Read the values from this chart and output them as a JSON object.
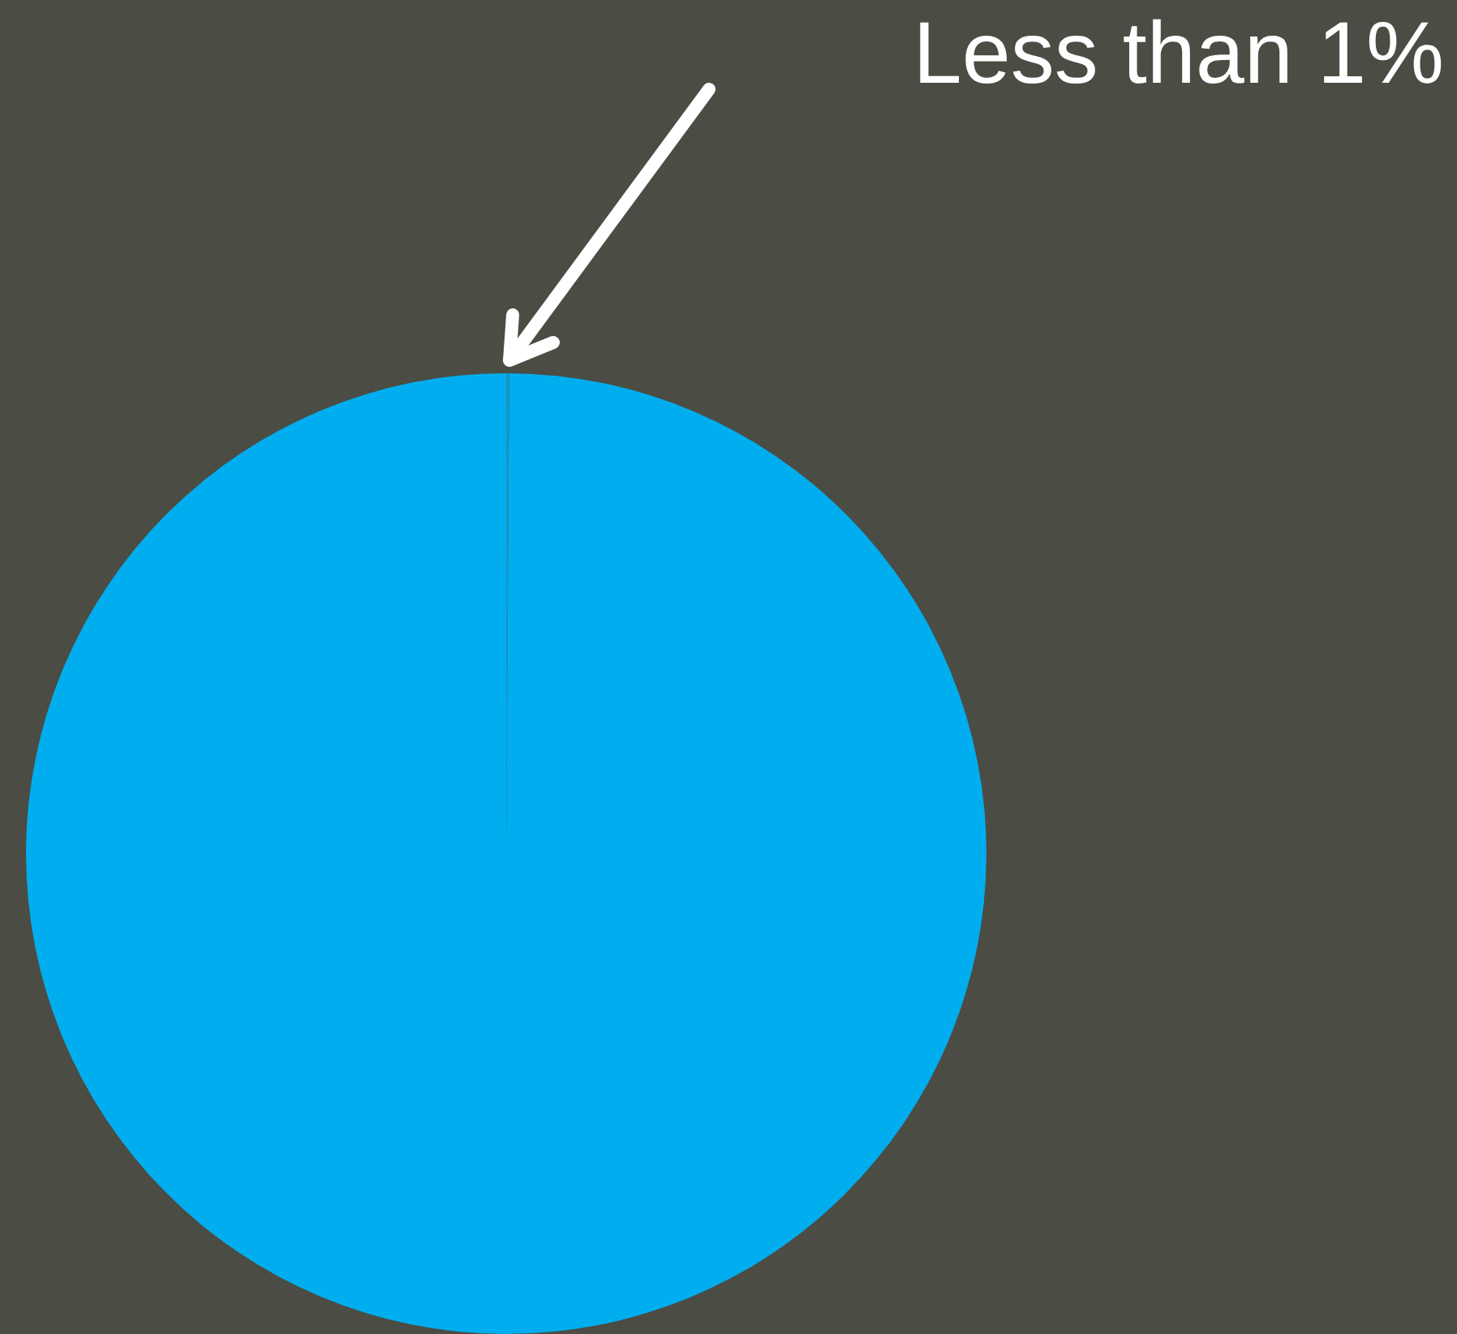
{
  "chart_data": {
    "type": "pie",
    "categories": [
      null,
      null
    ],
    "values": [
      0.1,
      99.9
    ],
    "colors": [
      "#1a94c4",
      "#00aeef"
    ],
    "annotations": [
      "Less than 1%"
    ],
    "legend": false
  }
}
